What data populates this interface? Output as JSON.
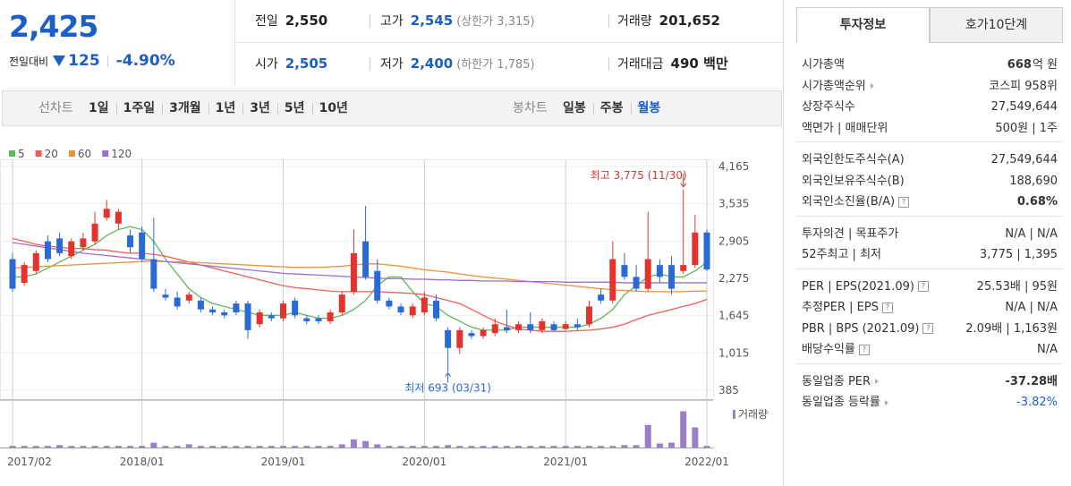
{
  "quote": {
    "price": "2,425",
    "change_label": "전일대비",
    "change": "125",
    "change_rate": "-4.90%"
  },
  "summary": [
    [
      {
        "label": "전일",
        "value": "2,550"
      },
      {
        "label": "고가",
        "value": "2,545",
        "note": "(상한가 3,315)",
        "color": "#1a5fc8"
      },
      {
        "label": "거래량",
        "value": "201,652"
      }
    ],
    [
      {
        "label": "시가",
        "value": "2,505",
        "color": "#1a5fc8"
      },
      {
        "label": "저가",
        "value": "2,400",
        "note": "(하한가 1,785)",
        "color": "#1a5fc8"
      },
      {
        "label": "거래대금",
        "value": "490 백만"
      }
    ]
  ],
  "line_chart": {
    "label": "선차트",
    "periods": [
      "1일",
      "1주일",
      "3개월",
      "1년",
      "3년",
      "5년",
      "10년"
    ]
  },
  "candle_chart": {
    "label": "봉차트",
    "periods": [
      "일봉",
      "주봉",
      "월봉"
    ],
    "selected_index": 2
  },
  "chart_data": {
    "type": "candlestick",
    "x": [
      "2017/02",
      null,
      null,
      null,
      null,
      null,
      null,
      null,
      null,
      null,
      null,
      "2018/01",
      null,
      null,
      null,
      null,
      null,
      null,
      null,
      null,
      null,
      null,
      null,
      "2019/01",
      null,
      null,
      null,
      null,
      null,
      null,
      null,
      null,
      null,
      null,
      null,
      "2020/01",
      null,
      null,
      null,
      null,
      null,
      null,
      null,
      null,
      null,
      null,
      null,
      "2021/01",
      null,
      null,
      null,
      null,
      null,
      null,
      null,
      null,
      null,
      null,
      null,
      "2022/01"
    ],
    "open": [
      2600,
      2200,
      2400,
      2900,
      2950,
      2650,
      2800,
      2900,
      3300,
      3200,
      3000,
      3050,
      2600,
      2000,
      1950,
      1900,
      1900,
      1750,
      1700,
      1850,
      1850,
      1500,
      1650,
      1600,
      1900,
      1600,
      1600,
      1550,
      1700,
      2050,
      2900,
      2400,
      1900,
      1800,
      1650,
      1700,
      1900,
      1400,
      1100,
      1350,
      1300,
      1350,
      1450,
      1400,
      1500,
      1400,
      1500,
      1420,
      1500,
      1500,
      2000,
      1900,
      2500,
      2300,
      2100,
      2500,
      2500,
      2400,
      2500,
      3050
    ],
    "high": [
      2700,
      2550,
      2750,
      3000,
      3050,
      2950,
      3050,
      3400,
      3600,
      3450,
      3100,
      3150,
      3300,
      2100,
      2050,
      2050,
      1950,
      1800,
      1750,
      1900,
      1900,
      1750,
      1700,
      1900,
      1950,
      1650,
      1650,
      1750,
      2050,
      3100,
      3500,
      2600,
      1950,
      1850,
      1850,
      2050,
      2000,
      1450,
      1450,
      1400,
      1450,
      1600,
      1750,
      1550,
      1700,
      1600,
      1550,
      1550,
      1600,
      1900,
      2100,
      2900,
      2700,
      2500,
      3400,
      2600,
      2650,
      3775,
      3350,
      3100
    ],
    "low": [
      2050,
      2150,
      2350,
      2550,
      2650,
      2600,
      2750,
      2850,
      3250,
      3100,
      2700,
      2550,
      2050,
      1900,
      1750,
      1850,
      1700,
      1650,
      1600,
      1650,
      1250,
      1450,
      1550,
      1550,
      1600,
      1500,
      1500,
      1500,
      1650,
      2000,
      2250,
      1850,
      1750,
      1650,
      1600,
      1650,
      1550,
      693,
      1000,
      1250,
      1250,
      1300,
      1350,
      1350,
      1350,
      1350,
      1380,
      1400,
      1400,
      1450,
      1850,
      1850,
      2250,
      2050,
      2050,
      2200,
      2000,
      2350,
      2450,
      2400
    ],
    "close": [
      2100,
      2500,
      2700,
      2600,
      2700,
      2900,
      2950,
      3200,
      3450,
      3400,
      2800,
      2600,
      2100,
      1950,
      1800,
      2000,
      1750,
      1700,
      1650,
      1700,
      1400,
      1700,
      1600,
      1850,
      1650,
      1550,
      1550,
      1700,
      2000,
      2700,
      2300,
      1900,
      1800,
      1700,
      1800,
      1950,
      1600,
      1100,
      1400,
      1300,
      1400,
      1500,
      1400,
      1500,
      1400,
      1550,
      1400,
      1500,
      1450,
      1800,
      1900,
      2600,
      2300,
      2100,
      2600,
      2300,
      2100,
      2500,
      3050,
      2425
    ],
    "up_color": "#e5322d",
    "down_color": "#2a6ad6",
    "ylim": [
      385,
      4165
    ],
    "yticks": [
      385,
      {
        "value": 1015,
        "label": "1,015"
      },
      {
        "value": 1645,
        "label": "1,645"
      },
      {
        "value": 2275,
        "label": "2,275"
      },
      {
        "value": 2905,
        "label": "2,905"
      },
      {
        "value": 3535,
        "label": "3,535"
      },
      {
        "value": 4165,
        "label": "4,165"
      }
    ],
    "grid": true,
    "moving_averages": [
      {
        "name": "5",
        "color": "#5cb85c",
        "values": [
          2300,
          2300,
          2350,
          2450,
          2550,
          2650,
          2750,
          2850,
          3000,
          3100,
          3150,
          3100,
          2900,
          2600,
          2350,
          2100,
          1950,
          1850,
          1800,
          1750,
          1700,
          1650,
          1650,
          1650,
          1700,
          1650,
          1600,
          1600,
          1650,
          1750,
          1900,
          2150,
          2300,
          2300,
          2050,
          1850,
          1800,
          1650,
          1550,
          1450,
          1400,
          1400,
          1400,
          1450,
          1450,
          1450,
          1450,
          1450,
          1450,
          1500,
          1600,
          1750,
          2000,
          2150,
          2300,
          2350,
          2300,
          2300,
          2400,
          2550
        ]
      },
      {
        "name": "20",
        "color": "#ee5f5b",
        "values": [
          2950,
          2900,
          2850,
          2820,
          2800,
          2780,
          2780,
          2760,
          2750,
          2720,
          2700,
          2700,
          2680,
          2650,
          2600,
          2550,
          2500,
          2450,
          2400,
          2350,
          2300,
          2250,
          2200,
          2150,
          2120,
          2100,
          2080,
          2060,
          2050,
          2050,
          2050,
          2050,
          2040,
          2030,
          2020,
          2000,
          1950,
          1900,
          1850,
          1750,
          1650,
          1550,
          1480,
          1420,
          1400,
          1380,
          1380,
          1380,
          1390,
          1400,
          1420,
          1450,
          1500,
          1580,
          1650,
          1700,
          1750,
          1800,
          1850,
          1920
        ]
      },
      {
        "name": "60",
        "color": "#f0913a",
        "values": [
          2450,
          2460,
          2470,
          2480,
          2490,
          2500,
          2510,
          2520,
          2530,
          2540,
          2550,
          2560,
          2560,
          2560,
          2550,
          2550,
          2540,
          2530,
          2520,
          2510,
          2500,
          2490,
          2480,
          2470,
          2460,
          2460,
          2460,
          2470,
          2480,
          2500,
          2520,
          2520,
          2500,
          2480,
          2450,
          2420,
          2400,
          2380,
          2350,
          2320,
          2300,
          2280,
          2260,
          2240,
          2220,
          2200,
          2180,
          2160,
          2140,
          2120,
          2100,
          2080,
          2070,
          2060,
          2050,
          2050,
          2050,
          2050,
          2060,
          2060
        ]
      },
      {
        "name": "120",
        "color": "#9b6fd0",
        "values": [
          2880,
          2850,
          2820,
          2790,
          2760,
          2730,
          2700,
          2680,
          2660,
          2640,
          2620,
          2600,
          2580,
          2560,
          2540,
          2520,
          2500,
          2480,
          2460,
          2440,
          2420,
          2400,
          2380,
          2360,
          2350,
          2340,
          2330,
          2320,
          2310,
          2300,
          2290,
          2280,
          2270,
          2270,
          2260,
          2260,
          2250,
          2250,
          2240,
          2240,
          2230,
          2230,
          2230,
          2220,
          2220,
          2220,
          2220,
          2210,
          2210,
          2210,
          2210,
          2210,
          2200,
          2200,
          2200,
          2200,
          2200,
          2200,
          2200,
          2200
        ]
      }
    ],
    "high_label": "최고 3,775 (11/30)",
    "low_label": "최저 693 (03/31)",
    "volume_label": "거래량",
    "volume_color": "#9b80c8",
    "vlim": [
      0,
      50
    ],
    "volume": [
      2,
      2,
      2,
      2,
      3,
      2,
      2,
      2,
      2,
      2,
      2,
      2,
      6,
      2,
      2,
      4,
      2,
      2,
      2,
      2,
      2,
      2,
      2,
      2,
      2,
      2,
      2,
      2,
      4,
      10,
      8,
      4,
      2,
      2,
      2,
      2,
      2,
      3,
      2,
      2,
      2,
      2,
      2,
      2,
      2,
      2,
      2,
      2,
      2,
      2,
      2,
      2,
      3,
      3,
      28,
      5,
      6,
      45,
      25,
      2
    ]
  },
  "info": {
    "tabs": [
      "투자정보",
      "호가10단계"
    ],
    "active_tab": 0,
    "groups": [
      [
        {
          "label": "시가총액",
          "value": "668",
          "unit": "억 원"
        },
        {
          "label": "시가총액순위",
          "more": true,
          "value": "코스피 958위"
        },
        {
          "label": "상장주식수",
          "value": "27,549,644"
        },
        {
          "label": "액면가 | 매매단위",
          "value": "500원 | 1주"
        }
      ],
      [
        {
          "label": "외국인한도주식수(A)",
          "value": "27,549,644"
        },
        {
          "label": "외국인보유주식수(B)",
          "value": "188,690"
        },
        {
          "label": "외국인소진율(B/A)",
          "help": true,
          "value": "0.68%",
          "bold": true
        }
      ],
      [
        {
          "label": "투자의견 | 목표주가",
          "value": "N/A | N/A"
        },
        {
          "label": "52주최고 | 최저",
          "value": "3,775 | 1,395"
        }
      ],
      [
        {
          "label": "PER | EPS(2021.09)",
          "help": true,
          "value": "25.53배 | 95원"
        },
        {
          "label": "추정PER | EPS",
          "help": true,
          "value": "N/A | N/A"
        },
        {
          "label": "PBR | BPS (2021.09)",
          "help": true,
          "value": "2.09배 | 1,163원"
        },
        {
          "label": "배당수익률",
          "help": true,
          "value": "N/A"
        }
      ],
      [
        {
          "label": "동일업종 PER",
          "more": true,
          "value": "-37.28배",
          "bold": true
        },
        {
          "label": "동일업종 등락률",
          "more": true,
          "value": "-3.82%",
          "color": "#1a5fc8"
        }
      ]
    ]
  }
}
